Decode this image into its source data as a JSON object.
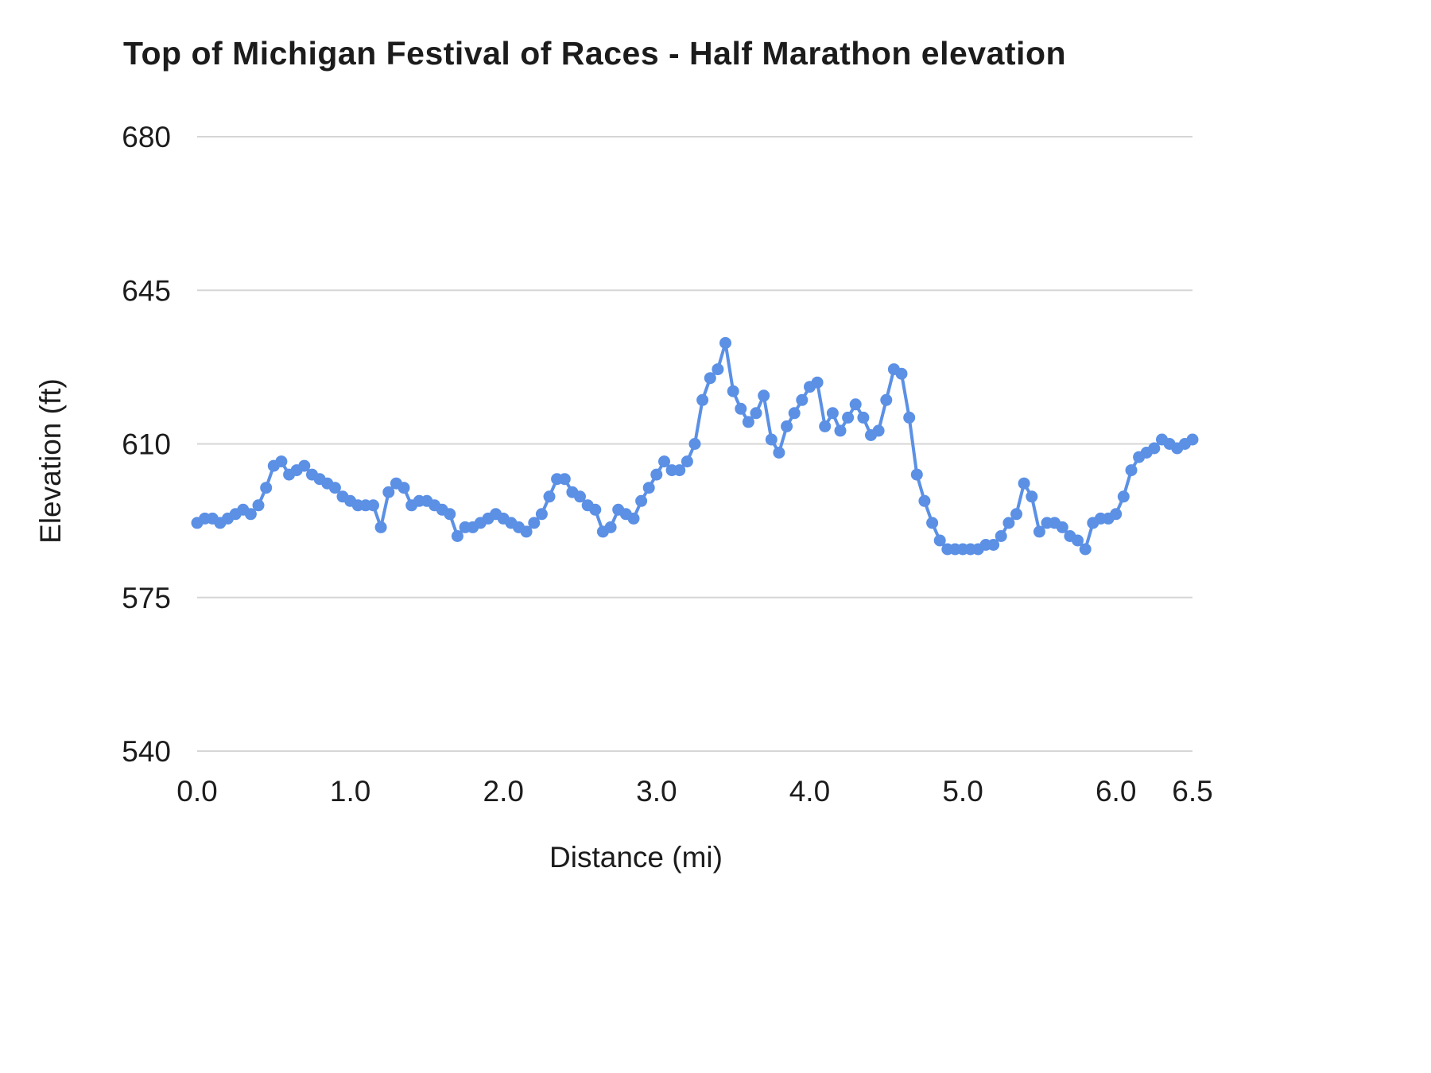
{
  "chart_data": {
    "type": "line",
    "title": "Top of Michigan Festival of Races - Half Marathon elevation",
    "xlabel": "Distance (mi)",
    "ylabel": "Elevation (ft)",
    "legend": "none",
    "grid": true,
    "xlim": [
      0,
      6.5
    ],
    "ylim": [
      540,
      680
    ],
    "x_ticks": [
      "0.0",
      "1.0",
      "2.0",
      "3.0",
      "4.0",
      "5.0",
      "6.0",
      "6.5"
    ],
    "x_tick_values": [
      0,
      1,
      2,
      3,
      4,
      5,
      6,
      6.5
    ],
    "y_ticks": [
      "540",
      "575",
      "610",
      "645",
      "680"
    ],
    "y_tick_values": [
      540,
      575,
      610,
      645,
      680
    ],
    "line_color": "#5b90e5",
    "grid_color": "#d6d6d6",
    "text_color": "#1c1c1c",
    "series": [
      {
        "name": "Elevation",
        "x_start": 0,
        "x_step": 0.05,
        "values": [
          592,
          593,
          593,
          592,
          593,
          594,
          595,
          594,
          596,
          600,
          605,
          606,
          603,
          604,
          605,
          603,
          602,
          601,
          600,
          598,
          597,
          596,
          596,
          596,
          591,
          599,
          601,
          600,
          596,
          597,
          597,
          596,
          595,
          594,
          589,
          591,
          591,
          592,
          593,
          594,
          593,
          592,
          591,
          590,
          592,
          594,
          598,
          602,
          602,
          599,
          598,
          596,
          595,
          590,
          591,
          595,
          594,
          593,
          597,
          600,
          603,
          606,
          604,
          604,
          606,
          610,
          620,
          625,
          627,
          633,
          622,
          618,
          615,
          617,
          621,
          611,
          608,
          614,
          617,
          620,
          623,
          624,
          614,
          617,
          613,
          616,
          619,
          616,
          612,
          613,
          620,
          627,
          626,
          616,
          603,
          597,
          592,
          588,
          586,
          586,
          586,
          586,
          586,
          587,
          587,
          589,
          592,
          594,
          601,
          598,
          590,
          592,
          592,
          591,
          589,
          588,
          586,
          592,
          593,
          593,
          594,
          598,
          604,
          607,
          608,
          609,
          611,
          610,
          609,
          610,
          611
        ]
      }
    ]
  }
}
